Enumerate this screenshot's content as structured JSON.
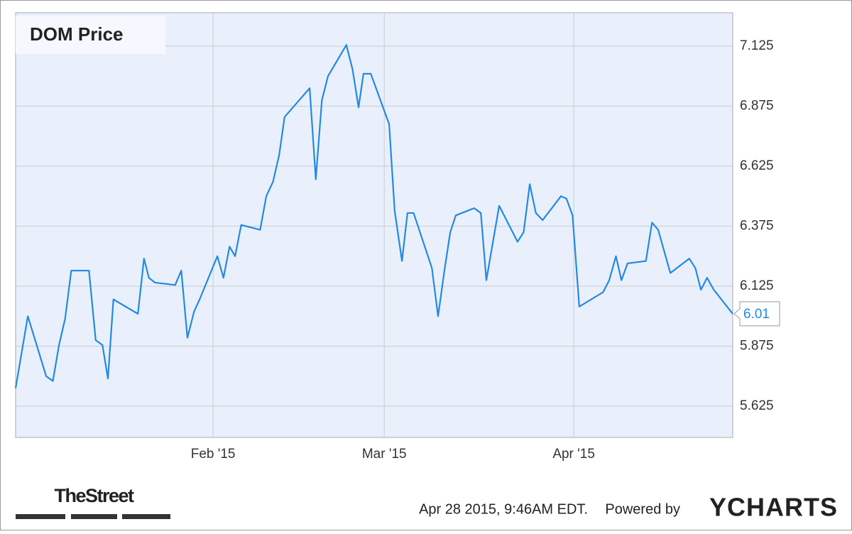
{
  "chart_data": {
    "type": "line",
    "title": "DOM Price",
    "series": [
      {
        "name": "DOM Price",
        "color": "#2489e3",
        "x": [
          -1.3,
          0.7,
          3.7,
          4.8,
          5.8,
          6.8,
          7.8,
          10.7,
          11.8,
          12.9,
          13.8,
          14.7,
          18.7,
          19.7,
          20.5,
          21.5,
          24.8,
          25.8,
          26.8,
          27.9,
          28.8,
          31.7,
          32.7,
          33.7,
          34.6,
          35.6,
          38.7,
          39.7,
          40.8,
          41.8,
          42.7,
          46.8,
          47.8,
          48.8,
          49.8,
          52.8,
          53.8,
          54.8,
          55.6,
          56.8,
          59.8,
          60.7,
          61.9,
          62.8,
          63.8,
          66.8,
          67.8,
          68.9,
          69.8,
          70.7,
          73.7,
          74.8,
          75.7,
          77.8,
          80.8,
          81.8,
          82.8,
          83.8,
          84.9,
          87.9,
          88.8,
          89.8,
          90.9,
          94.8,
          95.8,
          96.9,
          97.8,
          98.8,
          101.8,
          102.8,
          103.8,
          105.8,
          108.9,
          109.9,
          110.8,
          111.8,
          112.9,
          116.0
        ],
        "values": [
          5.7,
          6.0,
          5.75,
          5.73,
          5.88,
          5.99,
          6.19,
          6.19,
          5.9,
          5.88,
          5.74,
          6.07,
          6.01,
          6.24,
          6.16,
          6.14,
          6.13,
          6.19,
          5.91,
          6.02,
          6.07,
          6.25,
          6.16,
          6.29,
          6.25,
          6.38,
          6.36,
          6.5,
          6.56,
          6.67,
          6.83,
          6.95,
          6.57,
          6.9,
          7.0,
          7.13,
          7.03,
          6.87,
          7.01,
          7.01,
          6.8,
          6.44,
          6.23,
          6.43,
          6.43,
          6.2,
          6.0,
          6.2,
          6.35,
          6.42,
          6.45,
          6.43,
          6.15,
          6.46,
          6.31,
          6.35,
          6.55,
          6.43,
          6.4,
          6.5,
          6.49,
          6.42,
          6.04,
          6.1,
          6.15,
          6.25,
          6.15,
          6.22,
          6.23,
          6.39,
          6.36,
          6.18,
          6.24,
          6.2,
          6.11,
          6.16,
          6.11,
          6.01
        ]
      }
    ],
    "xlim": [
      -1.3,
      116.0
    ],
    "xticks": [
      {
        "value": 31,
        "label": "Feb '15"
      },
      {
        "value": 59,
        "label": "Mar '15"
      },
      {
        "value": 90,
        "label": "Apr '15"
      }
    ],
    "ylim": [
      5.495,
      7.264
    ],
    "yticks": [
      5.625,
      5.875,
      6.125,
      6.375,
      6.625,
      6.875,
      7.125
    ],
    "grid": true,
    "timestamp": "Apr 28 2015, 9:46AM EDT.",
    "powered_by": "Powered by",
    "brand": "YCHARTS",
    "source_logo": "TheStreet"
  }
}
